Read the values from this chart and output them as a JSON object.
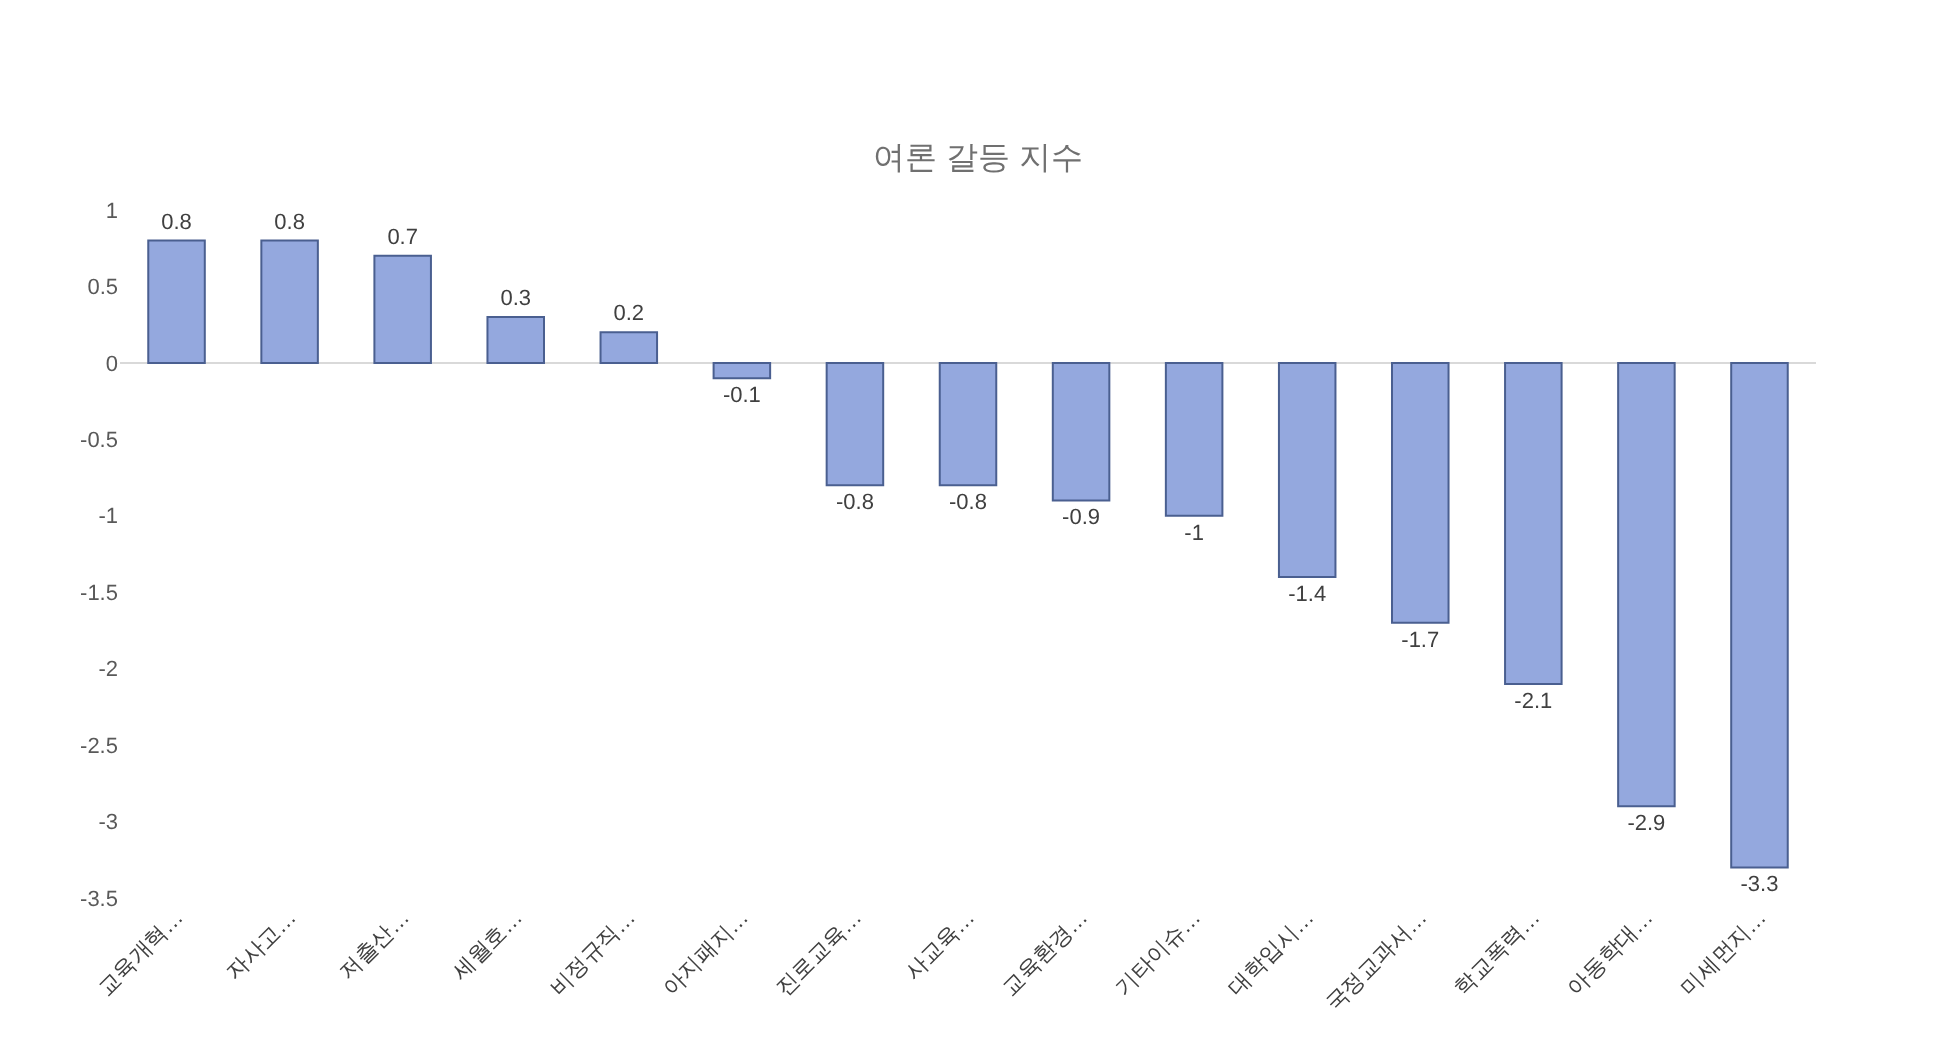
{
  "chart_data": {
    "type": "bar",
    "title": "여론 갈등 지수",
    "categories": [
      "교육개혁…",
      "자사고…",
      "저출산…",
      "세월호…",
      "비정규직…",
      "아지패지…",
      "진로교육…",
      "사교육…",
      "교육환경…",
      "기타이슈…",
      "대학입시…",
      "국정교과서…",
      "학교폭력…",
      "아동학대…",
      "미세먼지…"
    ],
    "values": [
      0.8,
      0.8,
      0.7,
      0.3,
      0.2,
      -0.1,
      -0.8,
      -0.8,
      -0.9,
      -1,
      -1.4,
      -1.7,
      -2.1,
      -2.9,
      -3.3
    ],
    "color": "#94a8de",
    "ylim": [
      -3.5,
      1
    ],
    "yticks": [
      {
        "value": 1,
        "label": "1"
      },
      0.5,
      0,
      -0.5,
      -1,
      -1.5,
      -2,
      -2.5,
      -3,
      -3.5
    ],
    "data_labels": true
  }
}
